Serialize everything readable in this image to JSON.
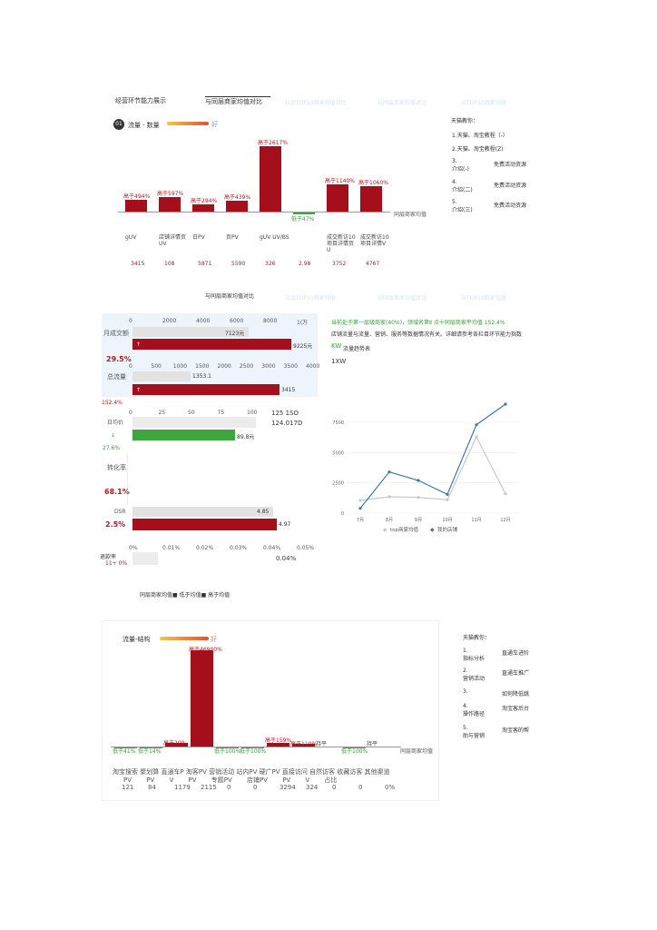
{
  "header": {
    "title_left": "经营环节能力展示",
    "title_mid": "与同层商家均值对比",
    "faint_1": "以品TOP10商家均值对比",
    "faint_2": "以同层商家均值对比",
    "faint_3": "以TOP10商家均值"
  },
  "chart1": {
    "badge": "01",
    "title": "流量 · 数量",
    "gradient_suffix": "好",
    "legend_right": "同层商家均值",
    "bars": [
      {
        "label": "高于494%",
        "dir": "up",
        "value": 494
      },
      {
        "label": "高于597%",
        "dir": "up",
        "value": 597
      },
      {
        "label": "高于294%",
        "dir": "up",
        "value": 294
      },
      {
        "label": "高于439%",
        "dir": "up",
        "value": 439
      },
      {
        "label": "高于2617%",
        "dir": "up",
        "value": 2617
      },
      {
        "label": "低于47%",
        "dir": "down",
        "value": 47
      },
      {
        "label": "高于1140%",
        "dir": "up",
        "value": 1140
      },
      {
        "label": "高于1060%",
        "dir": "up",
        "value": 1060
      }
    ],
    "categories": [
      "gUV",
      "店铺详情页UV",
      "日PV",
      "页PV",
      "gUV UV/BS",
      "",
      "成交新访10项目详情页U",
      "成交新访10项目详情V"
    ],
    "values": [
      "3415",
      "108",
      "5871",
      "5590",
      "326",
      "2.98",
      "3752",
      "4767"
    ]
  },
  "sidebar1": {
    "title": "天猫教你：",
    "items": [
      {
        "num": "1.天猫、淘宝教程（-）",
        "desc": ""
      },
      {
        "num": "2.天猫、淘宝教程(Z)",
        "desc": ""
      },
      {
        "num": "3.",
        "sub": "介绍(-)",
        "desc": "免费活动资源"
      },
      {
        "num": "4.",
        "sub": "介绍(二)",
        "desc": "免费活动资源"
      },
      {
        "num": "5.",
        "sub": "介绍(三)",
        "desc": "免费活动资源"
      }
    ]
  },
  "section2": {
    "title_mid": "与同层商家均值对比",
    "faint_1": "以品TOP10商家均值",
    "faint_2": "以同层商家均值对比",
    "faint_3": "以TOP10商家均值"
  },
  "hbars": {
    "block1": {
      "ticks": [
        "0",
        "2000",
        "4000",
        "6000",
        "8000",
        "1(万"
      ],
      "label": "月成交额",
      "grey_value": "7123元",
      "red_value": "9225元",
      "pct": "29.5%",
      "grey_frac": 0.7123,
      "red_frac": 0.9225
    },
    "block2": {
      "ticks": [
        "0",
        "500",
        "1000",
        "1500",
        "2000",
        "2500",
        "3000",
        "3500",
        "4000"
      ],
      "label": "总流量",
      "grey_value": "1353.1",
      "red_value": "3415",
      "pct": "152.4%",
      "grey_frac": 0.3383,
      "red_frac": 0.8538
    },
    "block3": {
      "ticks": [
        "0",
        "25",
        "50",
        "75",
        "100"
      ],
      "label": "日均价",
      "side1": "125 1SO",
      "side2": "124.017D",
      "green_value": "89.8元",
      "pct": "27.6%",
      "green_frac": 0.898
    },
    "block4": {
      "label": "转化率",
      "pct_top": "68.1%",
      "label2": "DSR",
      "grey_value": "4.85",
      "red_value": "4.97",
      "pct": "2.5%",
      "grey_frac": 0.97,
      "red_frac": 0.994,
      "ticks": [
        "0%",
        "0.01%",
        "0.02%",
        "0.03%",
        "0.04%",
        "0.05%"
      ],
      "foot_label": "退款率",
      "foot_pct": "11+ 0%",
      "foot_value": "0.04%"
    },
    "legend": "同层商家均值■ 低于均值■ 高于均值"
  },
  "linechart": {
    "line1": "当前处于第一层级商家(40%)，领域名第Ⅱ 点十同层商家平均值 152.4%",
    "line2": "店铺流量与流量、营销、服务等数据情况有关。详细请参考各栏目环节能力指数",
    "kw": "KW",
    "kw_label": "流量趋势表",
    "sublabel": "1XW",
    "chart_data": {
      "type": "line",
      "title": "",
      "x": [
        "7月",
        "8月",
        "9月",
        "10月",
        "11月",
        "12月"
      ],
      "series": [
        {
          "name": "我的店铺",
          "values": [
            400,
            3400,
            2700,
            1550,
            7300,
            9000
          ]
        },
        {
          "name": "top商家均值",
          "values": [
            1050,
            1350,
            1300,
            1100,
            6300,
            1600
          ]
        }
      ],
      "yticks": [
        "0",
        "2500",
        "5000",
        "7500"
      ],
      "ylim": [
        0,
        9000
      ],
      "legend": [
        "top商家均值",
        "我的店铺"
      ],
      "colors": [
        "#3a78b0",
        "#c8c8c8"
      ]
    }
  },
  "chart2": {
    "title": "流量-结构",
    "gradient_suffix": "好",
    "legend_right": "同层商家均值",
    "bars": [
      {
        "label": "低于41%",
        "dir": "down",
        "value": 41
      },
      {
        "label": "低于14%",
        "dir": "down",
        "value": 14
      },
      {
        "label": "高于200",
        "dir": "up",
        "value": 200
      },
      {
        "label": "高于46900%",
        "dir": "up",
        "value": 46900
      },
      {
        "label": "低于100%",
        "dir": "down",
        "value": 100
      },
      {
        "label": "低于100%",
        "dir": "down",
        "value": 100
      },
      {
        "label": "高于159%",
        "dir": "up",
        "value": 159
      },
      {
        "label": "高于110%",
        "dir": "up",
        "value": 110
      },
      {
        "label": "持平",
        "dir": "flat",
        "value": 0
      },
      {
        "label": "低于100%",
        "dir": "down",
        "value": 100
      },
      {
        "label": "持平",
        "dir": "flat",
        "value": 0
      }
    ],
    "cat_row1": "淘宝搜索 聚划算 直通车P 淘客PV 营销活动 站内PV 硬广PV 直接访问 自然访客 收藏访客 其他渠道",
    "cat_row2": "PV PV V PV 专题PV 店铺PV PV V 占比",
    "values": [
      "121",
      "84",
      "1179",
      "2115",
      "0",
      "0",
      "3294",
      "324",
      "0",
      "0",
      "0%"
    ]
  },
  "sidebar2": {
    "title": "天猫教你：",
    "items": [
      {
        "num": "1.",
        "sub": "指标分析",
        "desc": "直通车进阶"
      },
      {
        "num": "2.",
        "sub": "营销活动",
        "desc": "直通车推广"
      },
      {
        "num": "3.",
        "sub": "",
        "desc": "如何降低跳"
      },
      {
        "num": "4.",
        "sub": "操作路径",
        "desc": "淘宝客后台"
      },
      {
        "num": "5.",
        "sub": "助与营销",
        "desc": "淘宝客的帮"
      }
    ]
  }
}
